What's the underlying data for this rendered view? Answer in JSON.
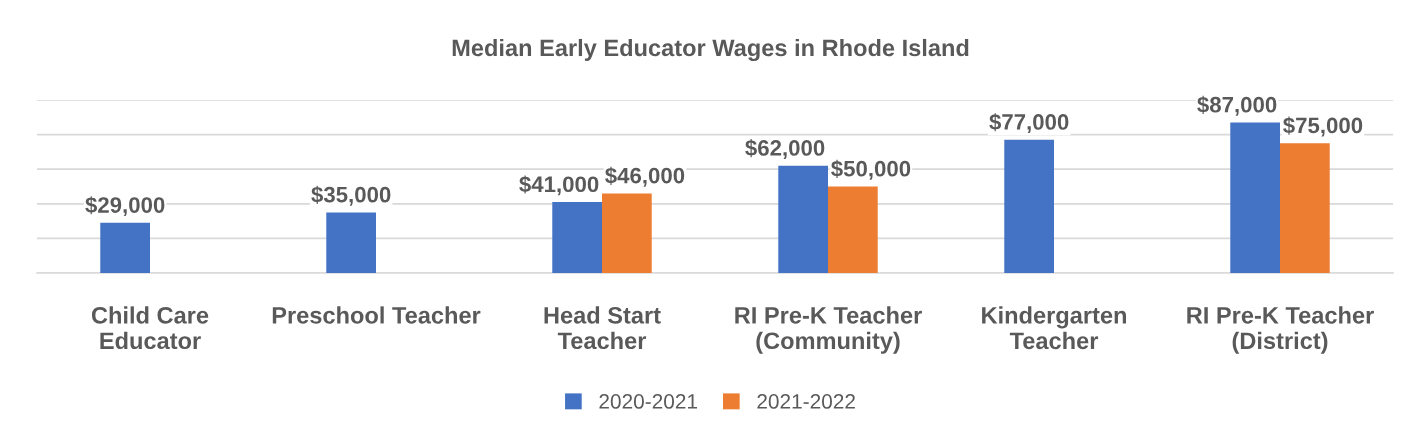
{
  "chart_data": {
    "type": "bar",
    "title": "Median Early Educator Wages in Rhode Island",
    "categories": [
      "Child Care\nEducator",
      "Preschool Teacher",
      "Head Start\nTeacher",
      "RI Pre-K Teacher\n(Community)",
      "Kindergarten\nTeacher",
      "RI Pre-K Teacher\n(District)"
    ],
    "series": [
      {
        "name": "2020-2021",
        "color": "#4472c4",
        "values": [
          29000,
          35000,
          41000,
          62000,
          77000,
          87000
        ],
        "value_labels": [
          "$29,000",
          "$35,000",
          "$41,000",
          "$62,000",
          "$77,000",
          "$87,000"
        ]
      },
      {
        "name": "2021-2022",
        "color": "#ed7d31",
        "values": [
          null,
          null,
          46000,
          50000,
          null,
          75000
        ],
        "value_labels": [
          null,
          null,
          "$46,000",
          "$50,000",
          null,
          "$75,000"
        ]
      }
    ],
    "ylim": [
      0,
      100000
    ],
    "yticks": [
      {
        "value": 0,
        "label": null
      },
      {
        "value": 20000,
        "label": null
      },
      {
        "value": 40000,
        "label": null
      },
      {
        "value": 60000,
        "label": null
      },
      {
        "value": 80000,
        "label": null
      },
      {
        "value": 100000,
        "label": null
      }
    ],
    "tick_labels": "x",
    "grid": "y",
    "legend": "bottom"
  }
}
